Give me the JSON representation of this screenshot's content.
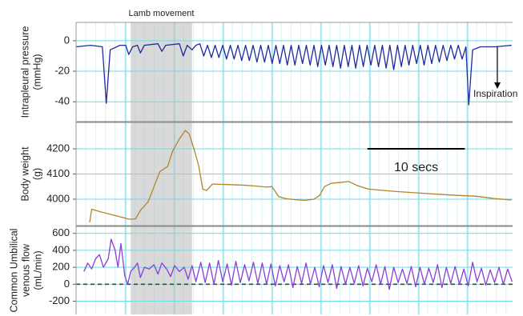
{
  "chart_data": [
    {
      "type": "line",
      "ylabel": [
        "Intrapleural pressure",
        "(mmHg)"
      ],
      "ylim": [
        -53,
        12
      ],
      "yticks": [
        0,
        -20,
        -40
      ],
      "xlim": [
        0,
        44.8
      ],
      "shaded_region": {
        "label": "Lamb movement",
        "x": [
          5.6,
          11.9
        ]
      },
      "annotation": "Inspiration",
      "x": [
        0,
        1.5,
        2.7,
        3.1,
        3.5,
        4.5,
        5.1,
        5.4,
        5.8,
        6.3,
        6.6,
        7.0,
        8.4,
        8.8,
        9.2,
        10.6,
        11.0,
        11.4,
        11.9,
        12.3,
        12.7,
        13.1,
        13.49,
        13.88,
        14.27,
        14.66,
        15.05,
        15.44,
        15.83,
        16.22,
        16.61,
        17.0,
        17.39,
        17.78,
        18.17,
        18.56,
        18.95,
        19.34,
        19.73,
        20.12,
        20.51,
        20.9,
        21.29,
        21.68,
        22.07,
        22.46,
        22.85,
        23.24,
        23.63,
        24.02,
        24.41,
        24.8,
        25.19,
        25.58,
        25.97,
        26.36,
        26.75,
        27.14,
        27.53,
        27.92,
        28.31,
        28.7,
        29.09,
        29.48,
        29.87,
        30.26,
        30.65,
        31.04,
        31.43,
        31.82,
        32.21,
        32.6,
        32.99,
        33.38,
        33.77,
        34.16,
        34.55,
        34.94,
        35.33,
        35.72,
        36.11,
        36.5,
        36.89,
        37.28,
        37.67,
        38.06,
        38.45,
        38.84,
        39.23,
        39.62,
        40.01,
        40.3,
        40.7,
        41.5,
        43.0,
        44.7
      ],
      "series": [
        {
          "color": "#1f2a9e",
          "values": [
            -4,
            -3,
            -4,
            -41,
            -6,
            -3,
            -3,
            -9,
            -4,
            -3,
            -8,
            -3,
            -2,
            -7,
            -3,
            -2,
            -10,
            -3,
            -6,
            -3,
            -2,
            -10,
            -3,
            -11,
            -3,
            -11,
            -3,
            -12,
            -3,
            -12,
            -3,
            -13,
            -3,
            -13,
            -3,
            -14,
            -3,
            -14,
            -3,
            -15,
            -3,
            -15,
            -3,
            -16,
            -3,
            -16,
            -3,
            -15,
            -3,
            -16,
            -3,
            -17,
            -3,
            -16,
            -3,
            -17,
            -3,
            -18,
            -3,
            -17,
            -3,
            -18,
            -3,
            -17,
            -3,
            -16,
            -3,
            -17,
            -3,
            -18,
            -3,
            -19,
            -3,
            -17,
            -3,
            -16,
            -3,
            -15,
            -3,
            -16,
            -3,
            -15,
            -3,
            -14,
            -3,
            -13,
            -3,
            -12,
            -3,
            -12,
            -4,
            -42,
            -6,
            -4,
            -4,
            -3
          ]
        }
      ]
    },
    {
      "type": "line",
      "ylabel": [
        "Body weight",
        "(g)"
      ],
      "ylim": [
        3895,
        4305
      ],
      "yticks": [
        4000,
        4100,
        4200
      ],
      "xlim": [
        0,
        44.8
      ],
      "scale_bar": {
        "label": "10 secs",
        "x": [
          29.9,
          39.9
        ]
      },
      "x": [
        1.4,
        1.6,
        2.5,
        4.0,
        5.5,
        6.1,
        6.6,
        7.4,
        8.0,
        8.6,
        9.4,
        9.9,
        10.6,
        11.2,
        11.6,
        12.1,
        12.6,
        13.0,
        13.4,
        14.0,
        15.5,
        17.0,
        18.5,
        19.6,
        20.1,
        20.8,
        21.5,
        22.5,
        23.5,
        24.4,
        25.0,
        25.5,
        26.2,
        27.0,
        28.0,
        28.8,
        30.0,
        31.5,
        33.0,
        35.0,
        37.0,
        39.0,
        41.0,
        43.0,
        44.7
      ],
      "series": [
        {
          "color": "#b0852c",
          "values": [
            3908,
            3960,
            3950,
            3935,
            3920,
            3922,
            3955,
            3990,
            4050,
            4110,
            4130,
            4190,
            4240,
            4273,
            4260,
            4200,
            4130,
            4040,
            4035,
            4060,
            4058,
            4056,
            4052,
            4048,
            4050,
            4010,
            4002,
            3998,
            3995,
            4000,
            4015,
            4050,
            4063,
            4066,
            4070,
            4055,
            4040,
            4035,
            4030,
            4025,
            4020,
            4015,
            4012,
            4002,
            3997
          ]
        }
      ]
    },
    {
      "type": "line",
      "ylabel": [
        "Common Umbilical",
        "venous flow",
        "(mL/min)"
      ],
      "ylim": [
        -355,
        682
      ],
      "yticks": [
        600,
        400,
        200,
        0,
        -200
      ],
      "xlim": [
        0,
        44.8
      ],
      "zero_line": true,
      "x": [
        0.8,
        1.2,
        1.6,
        2.0,
        2.4,
        2.8,
        3.3,
        3.6,
        4.0,
        4.3,
        4.6,
        5.0,
        5.3,
        5.6,
        6.0,
        6.3,
        6.6,
        7.0,
        7.5,
        8.0,
        8.4,
        8.8,
        9.3,
        9.7,
        10.1,
        10.6,
        11.1,
        11.5,
        11.9,
        12.3,
        12.8,
        13.25,
        13.7,
        14.15,
        14.6,
        15.05,
        15.5,
        15.95,
        16.4,
        16.85,
        17.3,
        17.75,
        18.2,
        18.65,
        19.1,
        19.55,
        20.0,
        20.45,
        20.9,
        21.35,
        21.8,
        22.25,
        22.7,
        23.15,
        23.6,
        24.05,
        24.5,
        24.95,
        25.4,
        25.85,
        26.3,
        26.75,
        27.2,
        27.65,
        28.1,
        28.55,
        29.0,
        29.45,
        29.9,
        30.35,
        30.8,
        31.25,
        31.7,
        32.15,
        32.6,
        33.05,
        33.5,
        33.95,
        34.4,
        34.85,
        35.3,
        35.75,
        36.2,
        36.65,
        37.1,
        37.55,
        38.0,
        38.45,
        38.9,
        39.35,
        39.8,
        40.25,
        40.7,
        41.15,
        41.6,
        42.05,
        42.5,
        42.95,
        43.4,
        43.85,
        44.3,
        44.75
      ],
      "series": [
        {
          "color": "#8a3fd6",
          "values": [
            150,
            250,
            180,
            300,
            350,
            200,
            300,
            530,
            400,
            200,
            480,
            100,
            0,
            150,
            200,
            250,
            80,
            200,
            180,
            230,
            120,
            250,
            180,
            90,
            220,
            150,
            200,
            60,
            220,
            30,
            260,
            20,
            250,
            0,
            280,
            30,
            240,
            -10,
            270,
            20,
            230,
            40,
            260,
            10,
            250,
            0,
            240,
            -20,
            220,
            30,
            230,
            -40,
            210,
            10,
            250,
            0,
            200,
            -30,
            220,
            20,
            230,
            -50,
            210,
            0,
            200,
            10,
            220,
            -20,
            190,
            30,
            230,
            0,
            210,
            -60,
            200,
            20,
            180,
            10,
            210,
            -30,
            200,
            0,
            190,
            20,
            230,
            -40,
            200,
            10,
            210,
            0,
            180,
            -20,
            260,
            30,
            190,
            -10,
            170,
            20,
            200,
            0,
            180,
            30
          ]
        }
      ]
    }
  ]
}
